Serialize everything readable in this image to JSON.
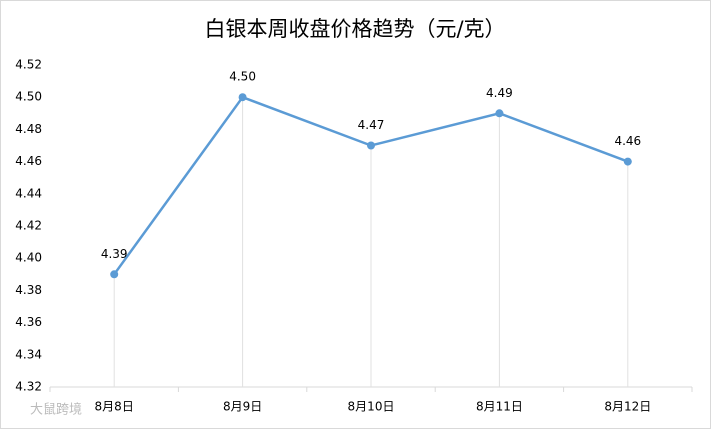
{
  "chart_data": {
    "type": "line",
    "title": "白银本周收盘价格趋势（元/克）",
    "categories": [
      "8月8日",
      "8月9日",
      "8月10日",
      "8月11日",
      "8月12日"
    ],
    "values": [
      4.39,
      4.5,
      4.47,
      4.49,
      4.46
    ],
    "value_labels": [
      "4.39",
      "4.50",
      "4.47",
      "4.49",
      "4.46"
    ],
    "color": "#5b9bd5",
    "ylim": [
      4.32,
      4.52
    ],
    "yticks": [
      4.32,
      4.34,
      4.36,
      4.38,
      {
        "value": 4.4,
        "label": "4.40"
      },
      4.42,
      4.44,
      4.46,
      4.48,
      {
        "value": 4.5,
        "label": "4.50"
      },
      4.52
    ],
    "drop_lines": true,
    "watermark": "大鼠跨境"
  }
}
